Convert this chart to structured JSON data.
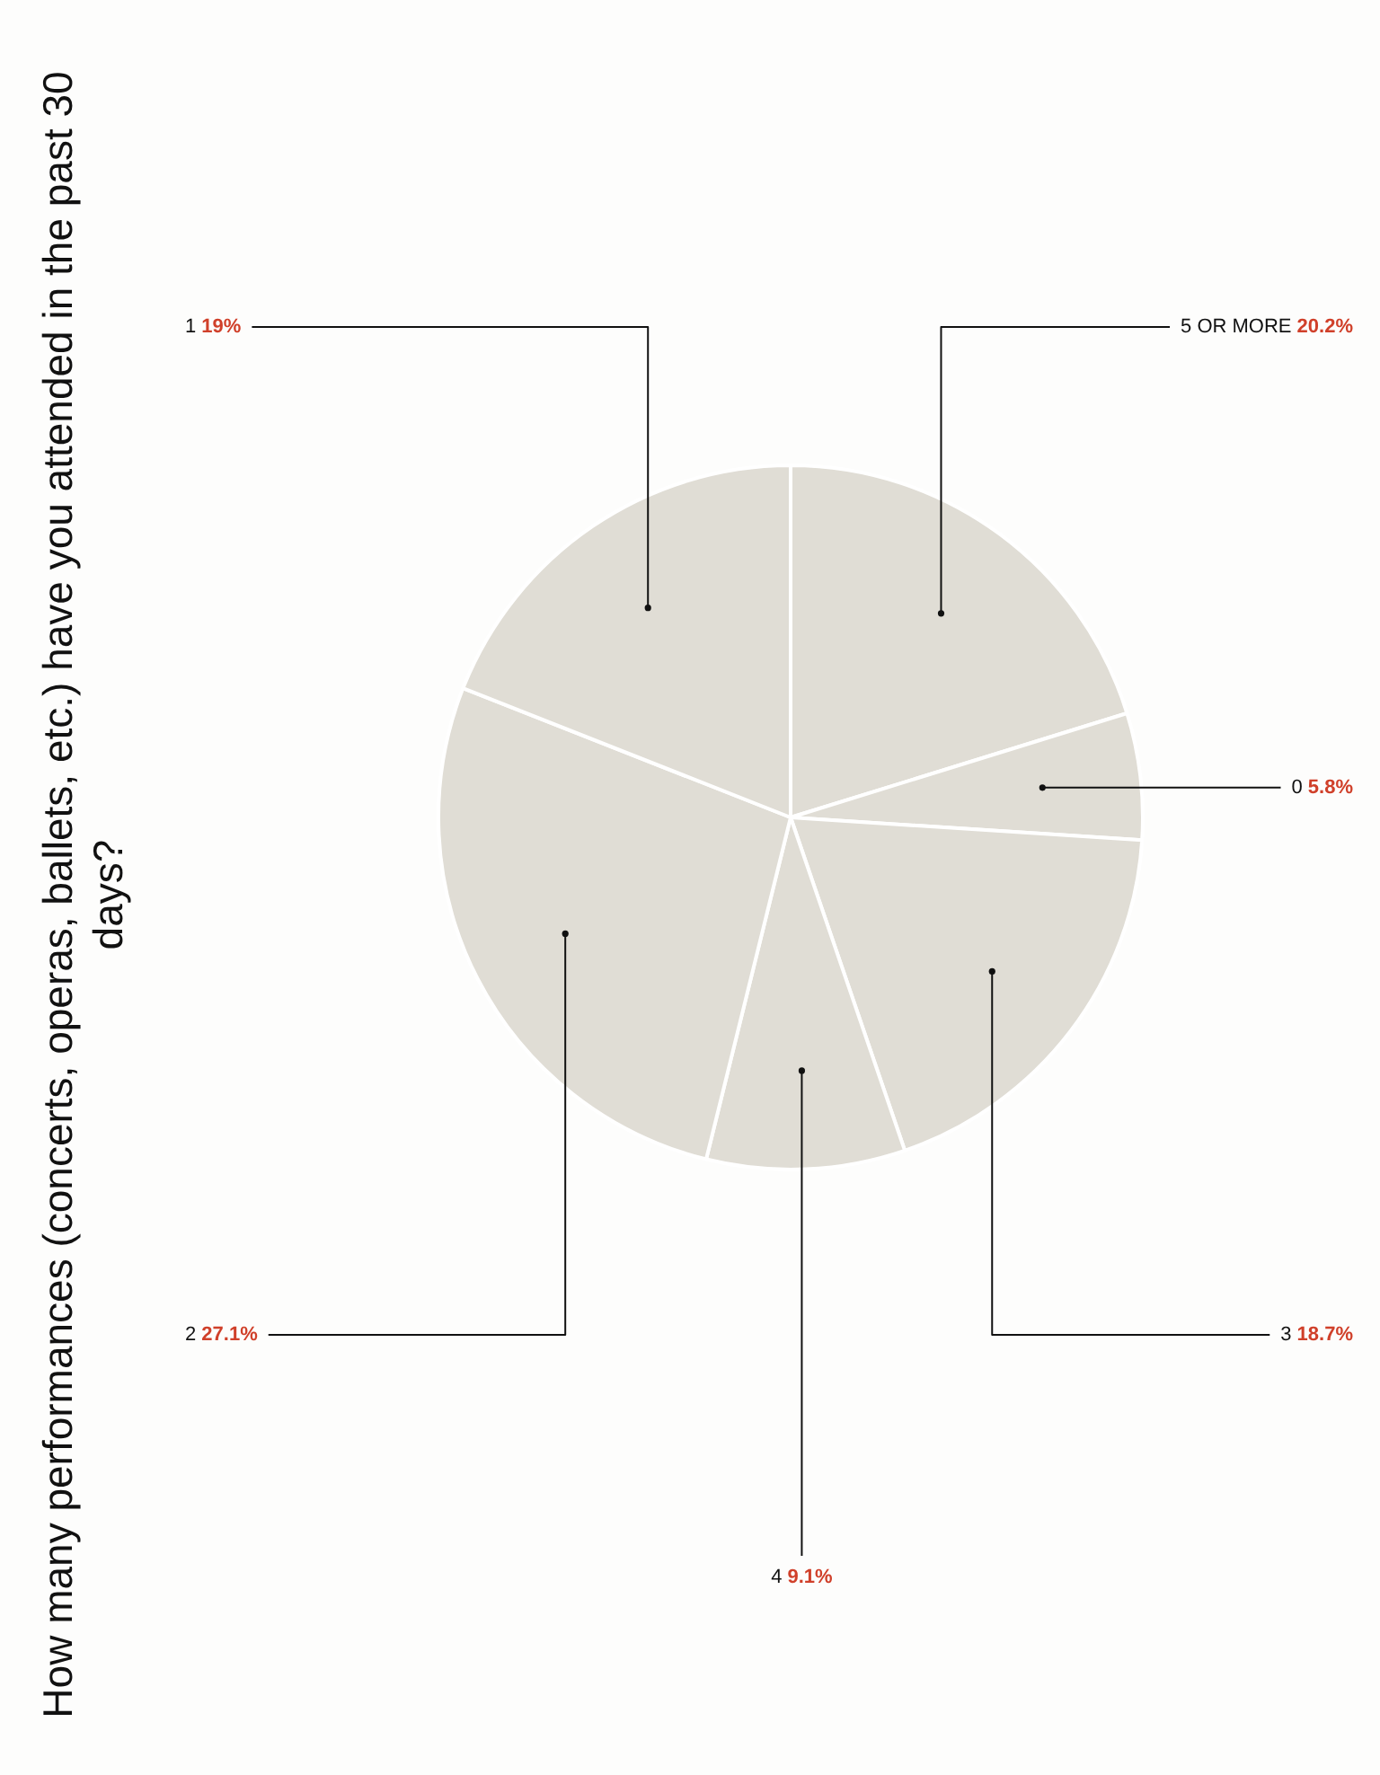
{
  "chart_data": {
    "type": "pie",
    "title": "How many performances (concerts, operas, ballets, etc.) have you attended in the past 30 days?",
    "categories": [
      "5 OR MORE",
      "0",
      "3",
      "4",
      "2",
      "1"
    ],
    "values": [
      20.2,
      5.8,
      18.7,
      9.1,
      27.1,
      19
    ],
    "value_labels": [
      "20.2%",
      "5.8%",
      "18.7%",
      "9.1%",
      "27.1%",
      "19%"
    ],
    "colors": [
      "#e0ddd5",
      "#e0ddd5",
      "#e0ddd5",
      "#e0ddd5",
      "#e0ddd5",
      "#e0ddd5"
    ],
    "legend": false
  }
}
